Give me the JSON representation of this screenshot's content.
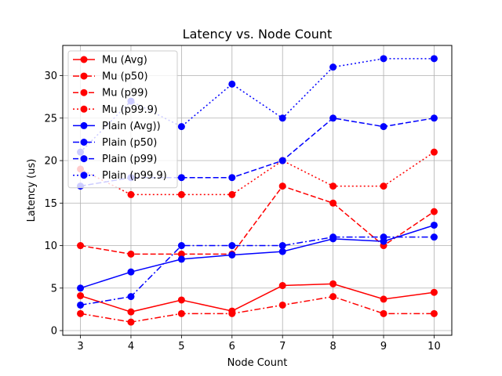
{
  "chart_data": {
    "type": "line",
    "title": "Latency vs. Node Count",
    "xlabel": "Node Count",
    "ylabel": "Latency (us)",
    "x": [
      3,
      4,
      5,
      6,
      7,
      8,
      9,
      10
    ],
    "xlim": [
      2.65,
      10.35
    ],
    "ylim": [
      -0.55,
      33.55
    ],
    "yticks": [
      0,
      5,
      10,
      15,
      20,
      25,
      30
    ],
    "grid": true,
    "legend_position": "upper-left",
    "series": [
      {
        "name": "Mu (Avg)",
        "color": "#ff0000",
        "linestyle": "solid",
        "marker": "circle",
        "values": [
          4.1,
          2.2,
          3.6,
          2.3,
          5.3,
          5.5,
          3.7,
          4.5
        ]
      },
      {
        "name": "Mu (p50)",
        "color": "#ff0000",
        "linestyle": "dashdot",
        "marker": "circle",
        "values": [
          2,
          1,
          2,
          2,
          3,
          4,
          2,
          2
        ]
      },
      {
        "name": "Mu (p99)",
        "color": "#ff0000",
        "linestyle": "dashed",
        "marker": "circle",
        "values": [
          10,
          9,
          9,
          9,
          17,
          15,
          10,
          14
        ]
      },
      {
        "name": "Mu (p99.9)",
        "color": "#ff0000",
        "linestyle": "dotted",
        "marker": "circle",
        "values": [
          19,
          16,
          16,
          16,
          20,
          17,
          17,
          21
        ]
      },
      {
        "name": "Plain (Avg))",
        "color": "#0000ff",
        "linestyle": "solid",
        "marker": "circle",
        "values": [
          5,
          6.9,
          8.4,
          8.9,
          9.3,
          10.8,
          10.5,
          12.4
        ]
      },
      {
        "name": "Plain (p50)",
        "color": "#0000ff",
        "linestyle": "dashdot",
        "marker": "circle",
        "values": [
          3,
          4,
          10,
          10,
          10,
          11,
          11,
          11
        ]
      },
      {
        "name": "Plain (p99)",
        "color": "#0000ff",
        "linestyle": "dashed",
        "marker": "circle",
        "values": [
          17,
          18,
          18,
          18,
          20,
          25,
          24,
          25
        ]
      },
      {
        "name": "Plain (p99.9)",
        "color": "#0000ff",
        "linestyle": "dotted",
        "marker": "circle",
        "values": [
          21,
          27,
          24,
          29,
          25,
          31,
          32,
          32
        ]
      }
    ]
  }
}
